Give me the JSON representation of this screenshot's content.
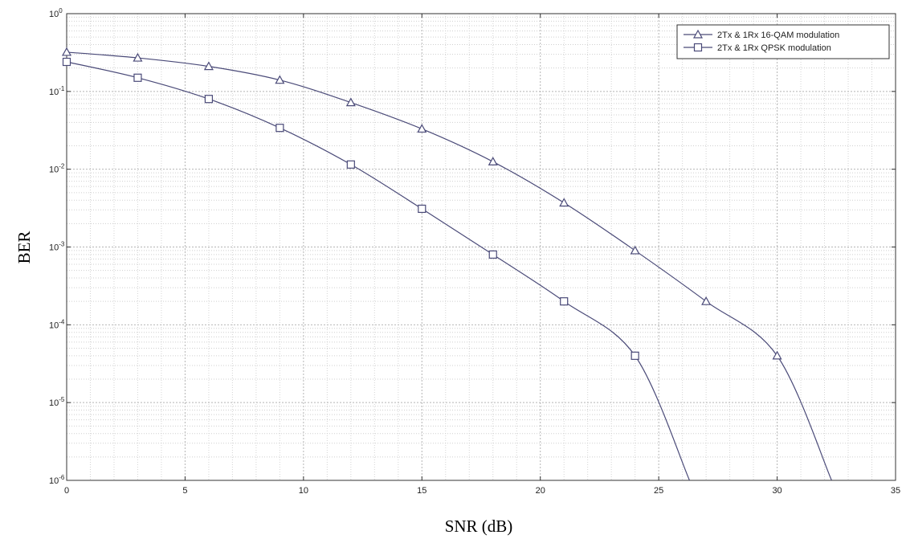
{
  "chart_data": {
    "type": "line",
    "xlabel": "SNR (dB)",
    "ylabel": "BER",
    "xlim": [
      0,
      35
    ],
    "ylim": [
      1e-06,
      1
    ],
    "yscale": "log",
    "grid": true,
    "minor_grid": true,
    "legend_position": "top-right",
    "x_ticks": [
      "0",
      "5",
      "10",
      "15",
      "20",
      "25",
      "30",
      "35"
    ],
    "y_ticks": [
      {
        "value": 1,
        "base": "10",
        "exp": "0"
      },
      {
        "value": 0.1,
        "base": "10",
        "exp": "-1"
      },
      {
        "value": 0.01,
        "base": "10",
        "exp": "-2"
      },
      {
        "value": 0.001,
        "base": "10",
        "exp": "-3"
      },
      {
        "value": 0.0001,
        "base": "10",
        "exp": "-4"
      },
      {
        "value": 1e-05,
        "base": "10",
        "exp": "-5"
      },
      {
        "value": 1e-06,
        "base": "10",
        "exp": "-6"
      }
    ],
    "line_color": "#4a4a78",
    "grid_color": "#b5b5b5",
    "series": [
      {
        "name": "2Tx & 1Rx 16-QAM modulation",
        "marker": "triangle",
        "x": [
          0,
          3,
          6,
          9,
          12,
          15,
          18,
          21,
          24,
          27,
          30,
          32.3
        ],
        "y": [
          0.32,
          0.27,
          0.21,
          0.14,
          0.072,
          0.033,
          0.0125,
          0.0037,
          0.0009,
          0.0002,
          4e-05,
          1e-06
        ],
        "marker_indices": [
          0,
          1,
          2,
          3,
          4,
          5,
          6,
          7,
          8,
          9,
          10
        ]
      },
      {
        "name": "2Tx & 1Rx QPSK modulation",
        "marker": "square",
        "x": [
          0,
          3,
          6,
          9,
          12,
          15,
          18,
          21,
          24,
          26.3
        ],
        "y": [
          0.24,
          0.15,
          0.08,
          0.034,
          0.0115,
          0.0031,
          0.0008,
          0.0002,
          4e-05,
          1e-06
        ],
        "marker_indices": [
          0,
          1,
          2,
          3,
          4,
          5,
          6,
          7,
          8
        ]
      }
    ]
  }
}
